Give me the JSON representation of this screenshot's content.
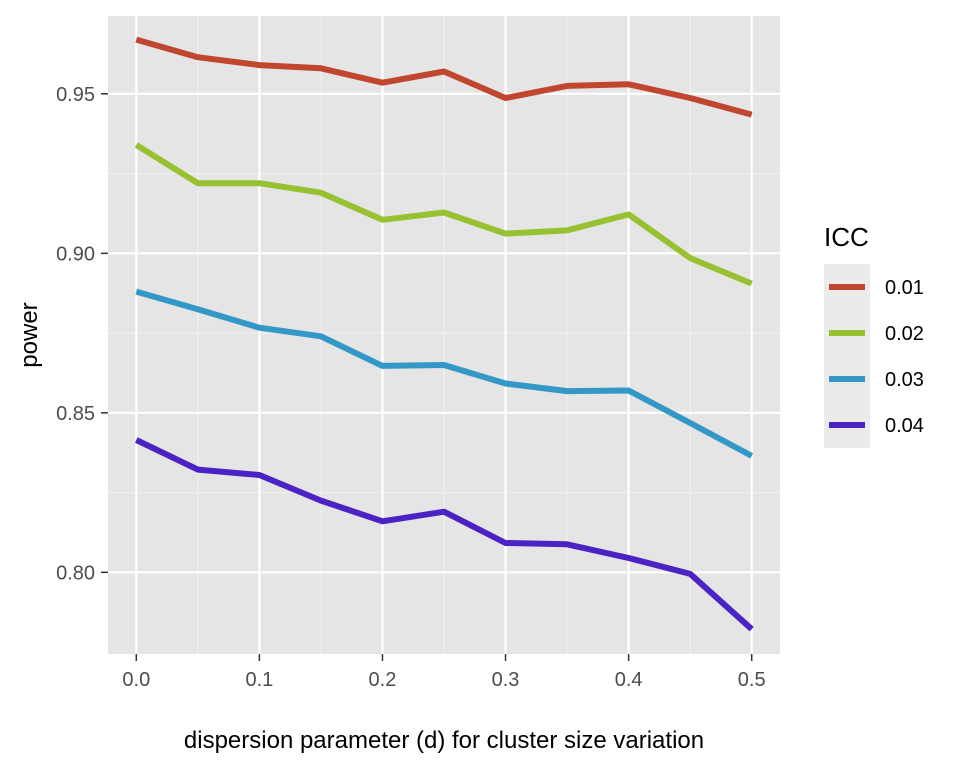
{
  "chart_data": {
    "type": "line",
    "title": "",
    "xlabel": "dispersion parameter (d) for cluster size variation",
    "ylabel": "power",
    "x": [
      0.0,
      0.05,
      0.1,
      0.15,
      0.2,
      0.25,
      0.3,
      0.35,
      0.4,
      0.45,
      0.5
    ],
    "xticks": [
      "0.0",
      "0.1",
      "0.2",
      "0.3",
      "0.4",
      "0.5"
    ],
    "xtick_values": [
      0.0,
      0.1,
      0.2,
      0.3,
      0.4,
      0.5
    ],
    "yticks": [
      "0.80",
      "0.85",
      "0.90",
      "0.95"
    ],
    "ytick_values": [
      0.8,
      0.85,
      0.9,
      0.95
    ],
    "xlim": [
      -0.023,
      0.523
    ],
    "ylim": [
      0.7744,
      0.9744
    ],
    "grid": true,
    "legend": {
      "title": "ICC",
      "placement": "right"
    },
    "series": [
      {
        "name": "0.01",
        "color": "#c0462f",
        "values": [
          0.967,
          0.9615,
          0.959,
          0.958,
          0.9535,
          0.957,
          0.9487,
          0.9525,
          0.953,
          0.9487,
          0.9435
        ]
      },
      {
        "name": "0.02",
        "color": "#97c130",
        "values": [
          0.934,
          0.922,
          0.922,
          0.919,
          0.9105,
          0.9128,
          0.9062,
          0.9072,
          0.9122,
          0.8985,
          0.8905
        ]
      },
      {
        "name": "0.03",
        "color": "#3498c6",
        "values": [
          0.888,
          0.8825,
          0.8767,
          0.874,
          0.8647,
          0.865,
          0.8592,
          0.8568,
          0.857,
          0.8468,
          0.8365
        ]
      },
      {
        "name": "0.04",
        "color": "#4b22c4",
        "values": [
          0.8415,
          0.8322,
          0.8305,
          0.8225,
          0.816,
          0.819,
          0.8092,
          0.8088,
          0.8045,
          0.7995,
          0.7822
        ]
      }
    ]
  }
}
